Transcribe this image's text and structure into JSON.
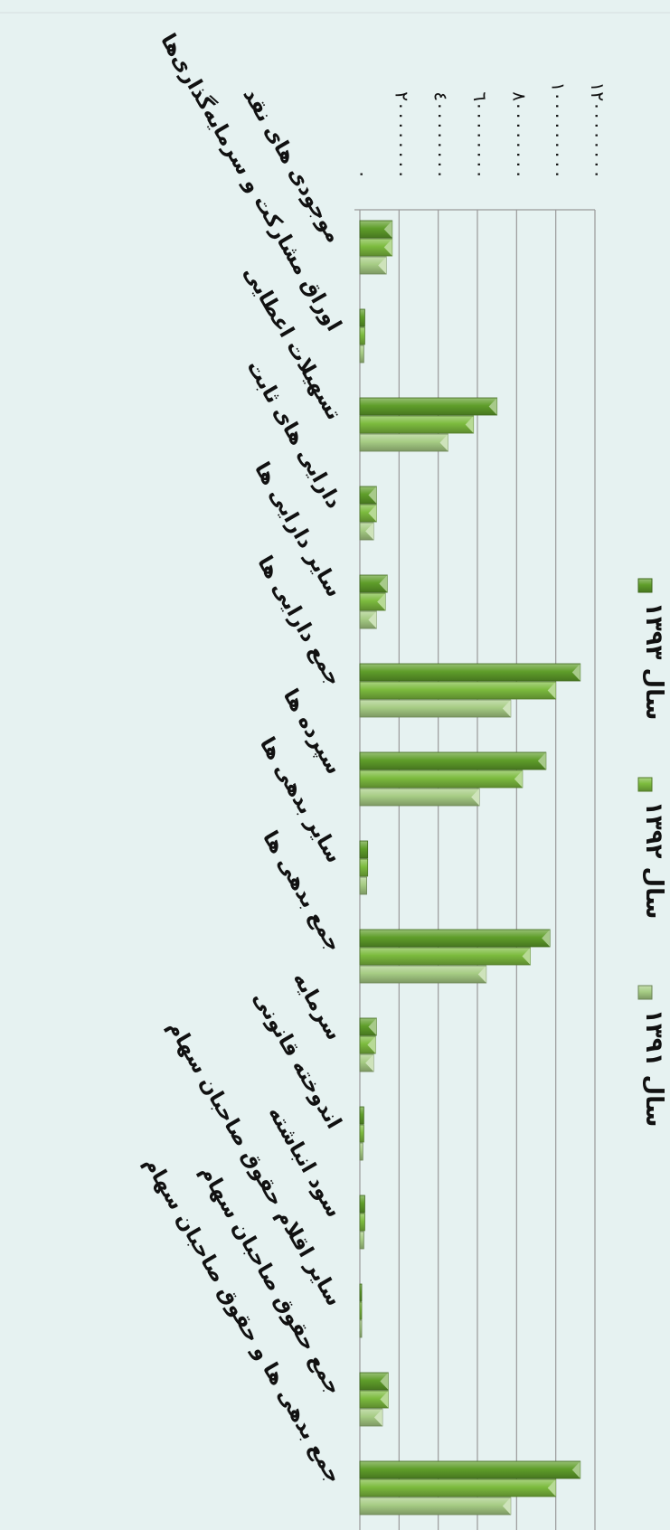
{
  "colors": {
    "background": "#e6f2f1",
    "series_1391": "#a6cc84",
    "series_1392": "#7cbb3e",
    "series_1393": "#5f9e2a"
  },
  "chart_data": {
    "type": "bar",
    "orientation": "rotated-90-clockwise",
    "title": "",
    "xlabel": "",
    "ylabel": "",
    "ylim": [
      0,
      1200000000
    ],
    "ticks": [
      0,
      200000000,
      400000000,
      600000000,
      800000000,
      1000000000,
      1200000000
    ],
    "tick_labels": [
      "٠",
      "٢٠٠٠٠٠٠٠٠",
      "٤٠٠٠٠٠٠٠٠",
      "٦٠٠٠٠٠٠٠٠",
      "٨٠٠٠٠٠٠٠٠",
      "١٠٠٠٠٠٠٠٠٠",
      "١٢٠٠٠٠٠٠٠٠"
    ],
    "grid": true,
    "legend_position": "right",
    "categories": [
      "موجودی های نقد",
      "اوراق مشارکت و سرمایه‌گذاری‌ها",
      "تسهیلات اعطایی",
      "دارایی های ثابت",
      "سایر دارایی ها",
      "جمع دارایی ها",
      "سپرده ها",
      "سایر بدهی ها",
      "جمع بدهی ها",
      "سرمایه",
      "اندوخته قانونی",
      "سود انباشته",
      "سایر اقلام حقوق صاحبان سهام",
      "جمع حقوق صاحبان سهام",
      "جمع بدهی ها و حقوق صاحبان سهام"
    ],
    "series": [
      {
        "name": "سال ۱۳۹۱",
        "color": "#a6cc84",
        "values": [
          135000000,
          20000000,
          450000000,
          70000000,
          85000000,
          770000000,
          610000000,
          35000000,
          645000000,
          70000000,
          15000000,
          20000000,
          5000000,
          115000000,
          770000000
        ]
      },
      {
        "name": "سال ۱۳۹۲",
        "color": "#7cbb3e",
        "values": [
          165000000,
          25000000,
          580000000,
          85000000,
          130000000,
          1000000000,
          830000000,
          40000000,
          870000000,
          80000000,
          20000000,
          25000000,
          5000000,
          145000000,
          1000000000
        ]
      },
      {
        "name": "سال ۱۳۹۳",
        "color": "#5f9e2a",
        "values": [
          165000000,
          25000000,
          700000000,
          85000000,
          140000000,
          1125000000,
          950000000,
          40000000,
          970000000,
          85000000,
          20000000,
          25000000,
          5000000,
          145000000,
          1125000000
        ]
      }
    ]
  }
}
